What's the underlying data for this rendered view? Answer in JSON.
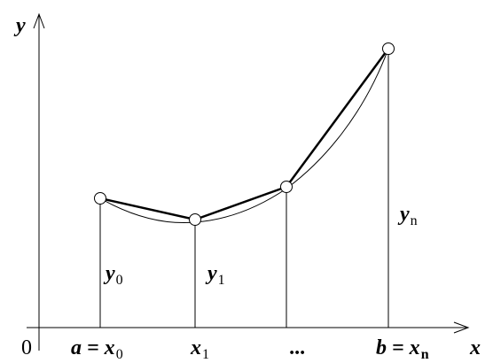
{
  "axes": {
    "y_label": "y",
    "x_label": "x",
    "origin": "0"
  },
  "x_labels": [
    {
      "main": "a = x",
      "sub": "0"
    },
    {
      "main": "x",
      "sub": "1"
    },
    {
      "main": "..."
    },
    {
      "main": "b = x",
      "sub": "n"
    }
  ],
  "ordinates": [
    {
      "main": "y",
      "sub": "0"
    },
    {
      "main": "y",
      "sub": "1"
    },
    {
      "main": "y",
      "sub": "n"
    }
  ]
}
